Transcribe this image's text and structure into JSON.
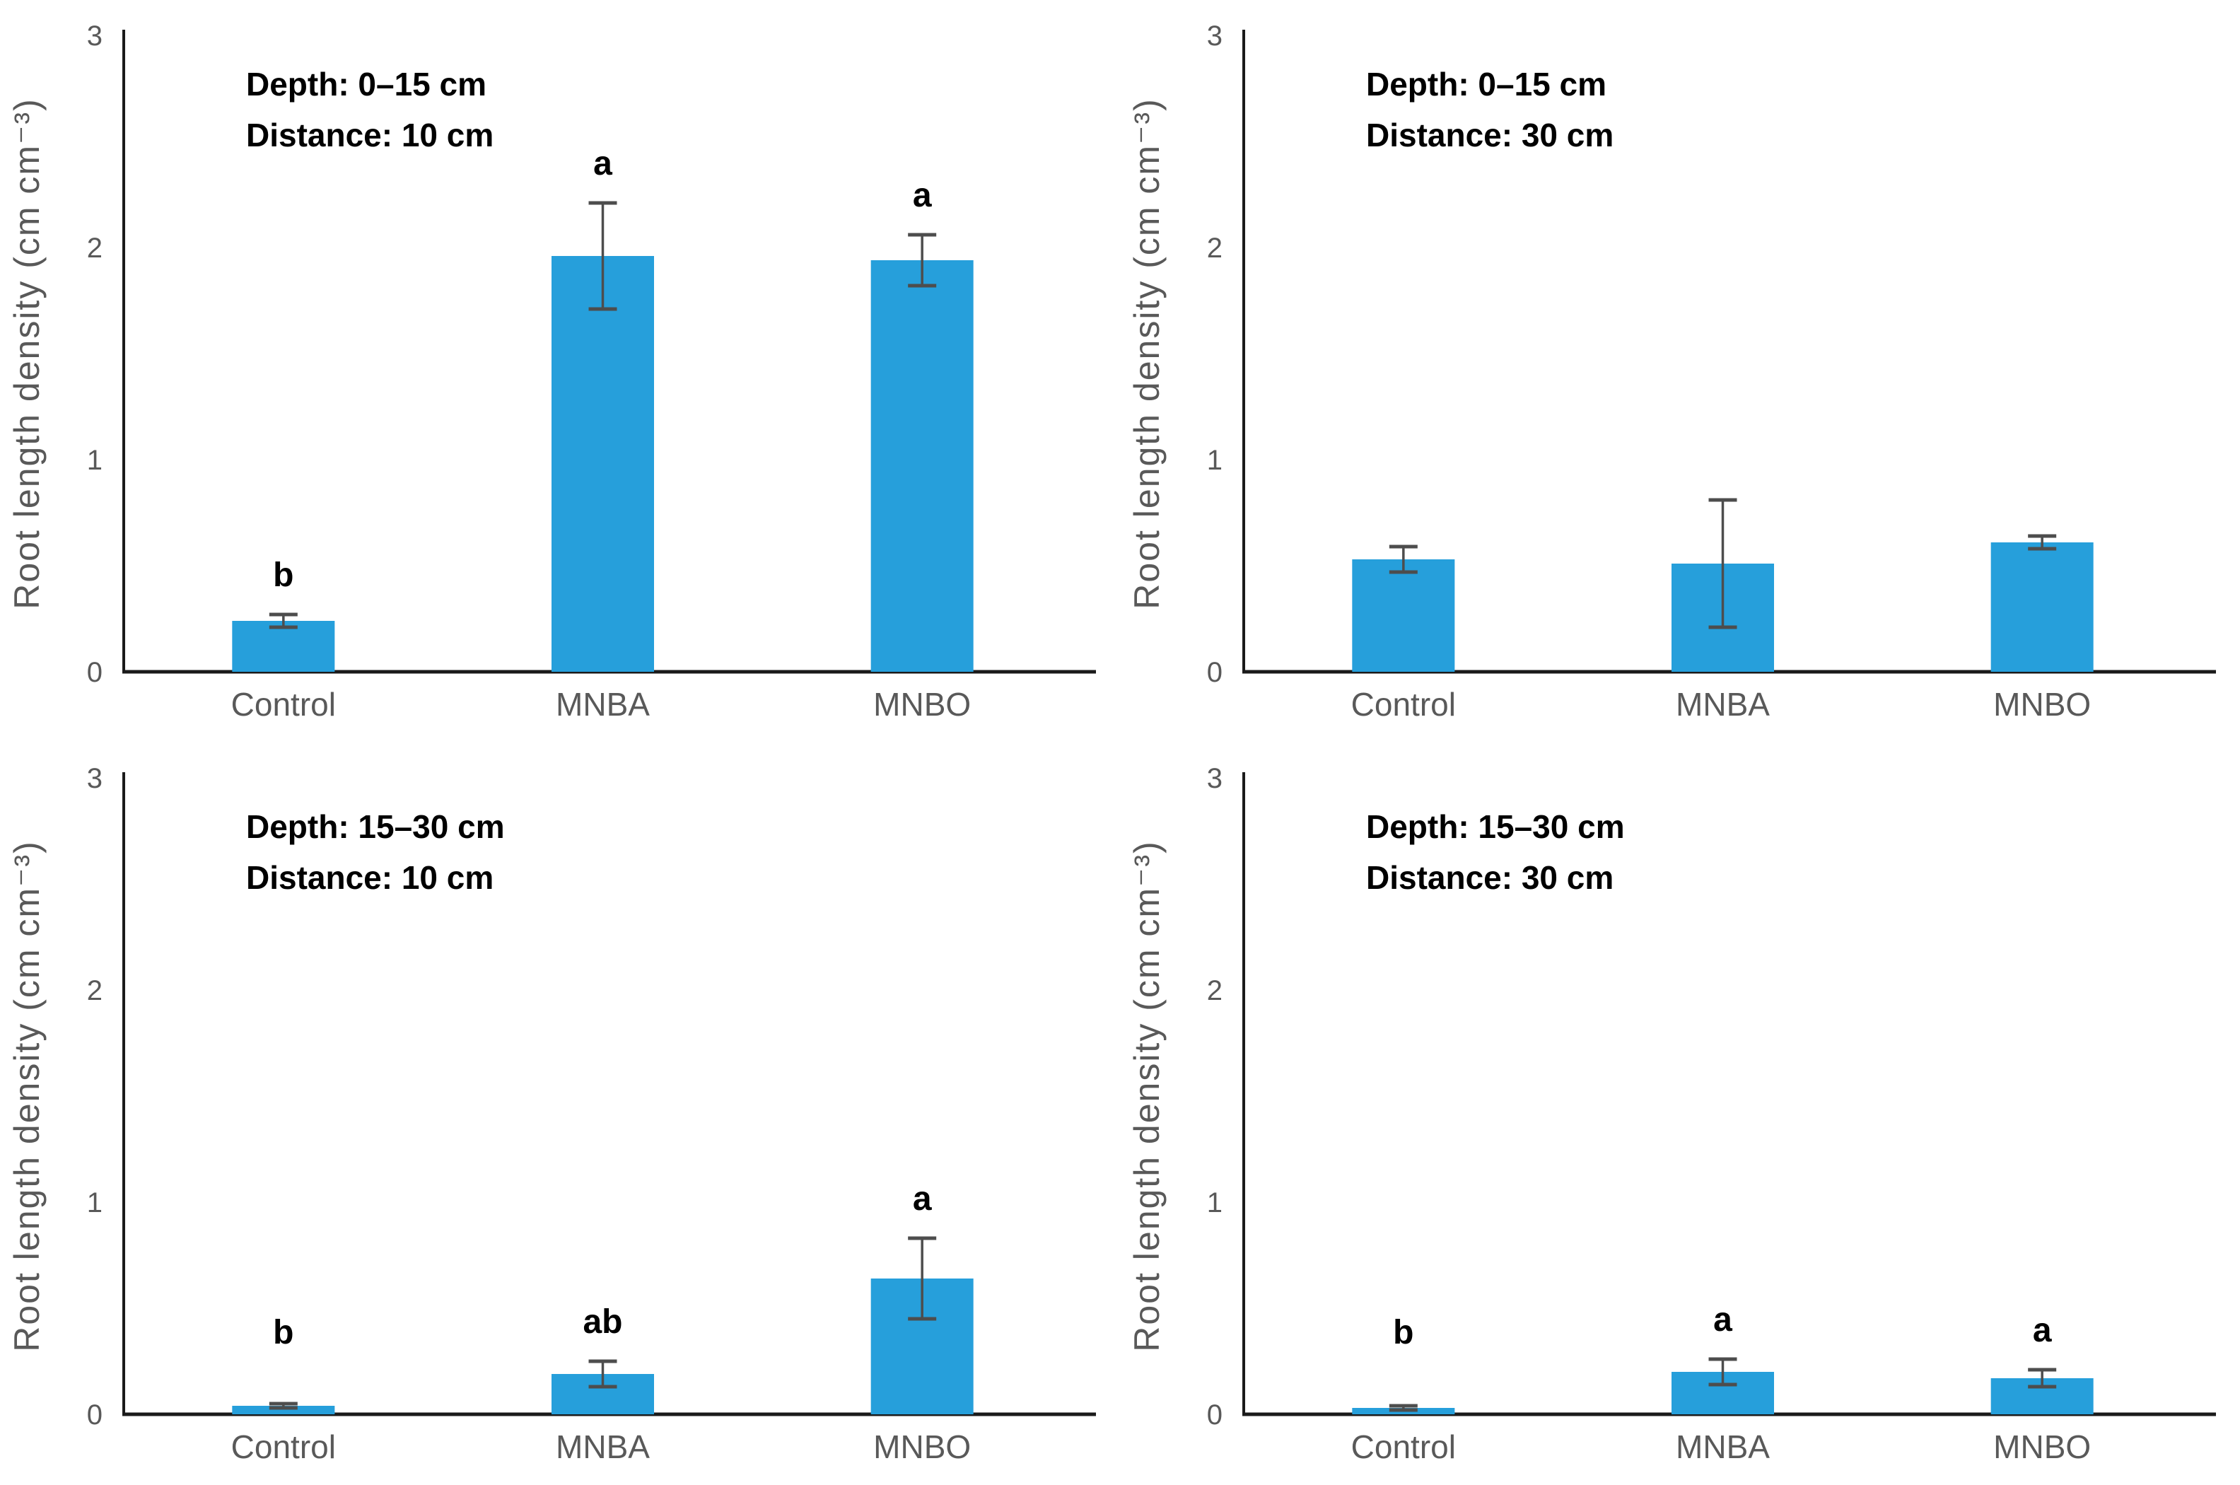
{
  "figure": {
    "ylabel": "Root length density  (cm cm⁻³)",
    "categories": [
      "Control",
      "MNBA",
      "MNBO"
    ],
    "colors": {
      "bar_fill": "#269FDB",
      "error_bar": "#4d4d4d",
      "axis_line": "#1a1a1a",
      "axis_text": "#595959",
      "annotation_text": "#000000",
      "letter_text": "#000000"
    }
  },
  "chart_data": [
    {
      "type": "bar",
      "panel": "top-left",
      "annotation_line1": "Depth: 0–15 cm",
      "annotation_line2": "Distance: 10 cm",
      "categories": [
        "Control",
        "MNBA",
        "MNBO"
      ],
      "values": [
        0.24,
        1.96,
        1.94
      ],
      "errors": [
        0.03,
        0.25,
        0.12
      ],
      "letters": [
        "b",
        "a",
        "a"
      ],
      "ylabel": "Root length density  (cm cm⁻³)",
      "yticks": [
        0,
        1,
        2,
        3
      ],
      "ylim": [
        0,
        3
      ],
      "grid": false,
      "legend": "none"
    },
    {
      "type": "bar",
      "panel": "top-right",
      "annotation_line1": "Depth: 0–15 cm",
      "annotation_line2": "Distance: 30 cm",
      "categories": [
        "Control",
        "MNBA",
        "MNBO"
      ],
      "values": [
        0.53,
        0.51,
        0.61
      ],
      "errors": [
        0.06,
        0.3,
        0.03
      ],
      "letters": [
        "",
        "",
        ""
      ],
      "ylabel": "Root length density  (cm cm⁻³)",
      "yticks": [
        0,
        1,
        2,
        3
      ],
      "ylim": [
        0,
        3
      ],
      "grid": false,
      "legend": "none"
    },
    {
      "type": "bar",
      "panel": "bottom-left",
      "annotation_line1": "Depth: 15–30 cm",
      "annotation_line2": "Distance: 10 cm",
      "categories": [
        "Control",
        "MNBA",
        "MNBO"
      ],
      "values": [
        0.04,
        0.19,
        0.64
      ],
      "errors": [
        0.01,
        0.06,
        0.19
      ],
      "letters": [
        "b",
        "ab",
        "a"
      ],
      "ylabel": "Root length density  (cm cm⁻³)",
      "yticks": [
        0,
        1,
        2,
        3
      ],
      "ylim": [
        0,
        3
      ],
      "grid": false,
      "legend": "none"
    },
    {
      "type": "bar",
      "panel": "bottom-right",
      "annotation_line1": "Depth: 15–30 cm",
      "annotation_line2": "Distance: 30 cm",
      "categories": [
        "Control",
        "MNBA",
        "MNBO"
      ],
      "values": [
        0.03,
        0.2,
        0.17
      ],
      "errors": [
        0.01,
        0.06,
        0.04
      ],
      "letters": [
        "b",
        "a",
        "a"
      ],
      "ylabel": "Root length density  (cm cm⁻³)",
      "yticks": [
        0,
        1,
        2,
        3
      ],
      "ylim": [
        0,
        3
      ],
      "grid": false,
      "legend": "none"
    }
  ]
}
